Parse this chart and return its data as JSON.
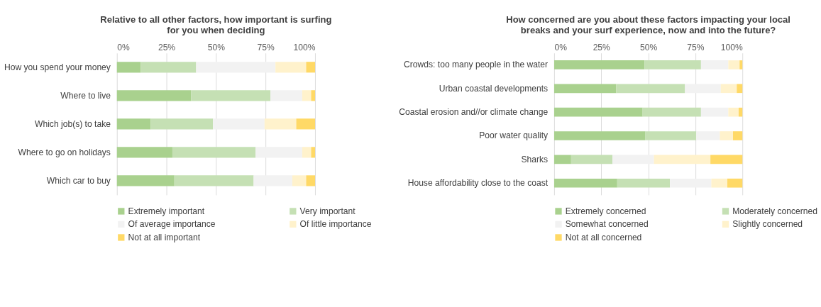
{
  "chart_data": [
    {
      "type": "bar",
      "orientation": "horizontal",
      "stacked": true,
      "title": "Relative to all other factors, how important is surfing\nfor you when deciding",
      "categories": [
        "How you spend your money",
        "Where to live",
        "Which job(s) to take",
        "Where to go on holidays",
        "Which car to buy"
      ],
      "series": [
        {
          "name": "Extremely important",
          "color": "#a9d18e",
          "values": [
            12,
            37.5,
            17,
            28,
            29
          ]
        },
        {
          "name": "Very important",
          "color": "#c5e0b4",
          "values": [
            28,
            40,
            31.5,
            42,
            40
          ]
        },
        {
          "name": "Of average importance",
          "color": "#f2f2f2",
          "values": [
            40,
            16,
            26,
            23.5,
            19.5
          ]
        },
        {
          "name": "Of little importance",
          "color": "#fff2cc",
          "values": [
            15.5,
            4.5,
            16,
            4.5,
            7
          ]
        },
        {
          "name": "Not at all important",
          "color": "#ffd966",
          "values": [
            4.5,
            2,
            9.5,
            2,
            4.5
          ]
        }
      ],
      "xlim": [
        0,
        100
      ],
      "xticks": [
        {
          "value": 0,
          "label": "0%"
        },
        {
          "value": 25,
          "label": "25%"
        },
        {
          "value": 50,
          "label": "50%"
        },
        {
          "value": 75,
          "label": "75%"
        },
        {
          "value": 100,
          "label": "100%"
        }
      ],
      "grid": "x",
      "legend": "bottom"
    },
    {
      "type": "bar",
      "orientation": "horizontal",
      "stacked": true,
      "title": "How concerned are you about these factors impacting your local\nbreaks and your surf experience, now and into the future?",
      "categories": [
        "Crowds: too many people in the water",
        "Urban coastal developments",
        "Coastal erosion and//or climate change",
        "Poor water quality",
        "Sharks",
        "House affordability close to the coast"
      ],
      "series": [
        {
          "name": "Extremely concerned",
          "color": "#a9d18e",
          "values": [
            48,
            33,
            47,
            48.5,
            9,
            33.5
          ]
        },
        {
          "name": "Moderately concerned",
          "color": "#c5e0b4",
          "values": [
            30,
            36.5,
            31,
            27,
            22,
            28
          ]
        },
        {
          "name": "Somewhat concerned",
          "color": "#f2f2f2",
          "values": [
            14.5,
            19,
            14.5,
            12.5,
            22,
            22
          ]
        },
        {
          "name": "Slightly concerned",
          "color": "#fff2cc",
          "values": [
            6,
            8.5,
            5.5,
            7,
            30,
            8.5
          ]
        },
        {
          "name": "Not at all concerned",
          "color": "#ffd966",
          "values": [
            1.5,
            3,
            2,
            5,
            17,
            8
          ]
        }
      ],
      "xlim": [
        0,
        100
      ],
      "xticks": [
        {
          "value": 0,
          "label": "0%"
        },
        {
          "value": 25,
          "label": "25%"
        },
        {
          "value": 50,
          "label": "50%"
        },
        {
          "value": 75,
          "label": "75%"
        },
        {
          "value": 100,
          "label": "100%"
        }
      ],
      "grid": "x",
      "legend": "bottom"
    }
  ]
}
